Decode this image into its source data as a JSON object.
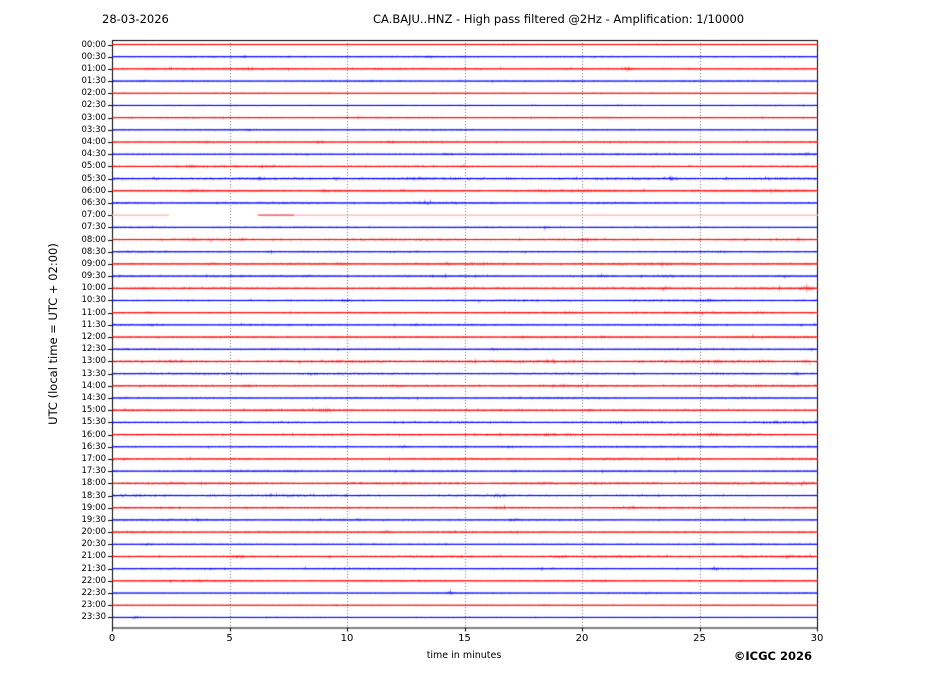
{
  "header": {
    "date": "28-03-2026",
    "title": "CA.BAJU..HNZ - High pass filtered @2Hz - Amplification: 1/10000"
  },
  "footer": {
    "credit": "©ICGC 2026"
  },
  "chart_data": {
    "type": "line",
    "subtype": "helicorder-dayplot",
    "title": "CA.BAJU..HNZ - High pass filtered @2Hz - Amplification: 1/10000",
    "date": "28-03-2026",
    "xlabel": "time in minutes",
    "ylabel": "UTC (local time = UTC + 02:00)",
    "xlim": [
      0,
      30
    ],
    "x_ticks": [
      0,
      5,
      10,
      15,
      20,
      25,
      30
    ],
    "x_gridlines": [
      5,
      10,
      15,
      20,
      25
    ],
    "grid": "vertical dotted gridlines at 5-minute intervals",
    "row_interval_minutes": 30,
    "n_rows": 48,
    "trace_colors": {
      "red": "#ff0000",
      "blue": "#0000ff",
      "pale": "#ffb3b3",
      "gap_segment": "#f26666"
    },
    "rows": [
      {
        "t": "00:00",
        "c": "red",
        "a": 0.7,
        "e": [
          [
            17,
            0.4,
            3
          ],
          [
            23,
            0.4,
            2
          ],
          [
            27,
            0.35,
            2.5
          ]
        ]
      },
      {
        "t": "00:30",
        "c": "blue",
        "a": 1.2,
        "e": [
          [
            5.6,
            0.7,
            0.3
          ],
          [
            13.5,
            0.9,
            0.4
          ]
        ]
      },
      {
        "t": "01:00",
        "c": "red",
        "a": 1.5,
        "e": [
          [
            1.5,
            0.6,
            0.5
          ],
          [
            22.0,
            1.6,
            0.35
          ],
          [
            24.6,
            0.8,
            0.3
          ],
          [
            28,
            0.6,
            0.4
          ]
        ]
      },
      {
        "t": "01:30",
        "c": "blue",
        "a": 1.1,
        "e": [
          [
            1.2,
            0.5,
            0.3
          ]
        ]
      },
      {
        "t": "02:00",
        "c": "red",
        "a": 0.95,
        "e": []
      },
      {
        "t": "02:30",
        "c": "blue",
        "a": 0.9,
        "e": []
      },
      {
        "t": "03:00",
        "c": "red",
        "a": 1.0,
        "e": [
          [
            21,
            0.3,
            0.5
          ]
        ]
      },
      {
        "t": "03:30",
        "c": "blue",
        "a": 1.0,
        "e": [
          [
            5.7,
            0.6,
            0.25
          ]
        ]
      },
      {
        "t": "04:00",
        "c": "red",
        "a": 1.35,
        "e": [
          [
            4.0,
            0.8,
            0.3
          ],
          [
            8.8,
            0.9,
            0.35
          ],
          [
            11.9,
            0.7,
            0.3
          ]
        ]
      },
      {
        "t": "04:30",
        "c": "blue",
        "a": 1.25,
        "e": [
          [
            14.3,
            0.6,
            0.3
          ],
          [
            29.5,
            1.1,
            0.3
          ]
        ]
      },
      {
        "t": "05:00",
        "c": "red",
        "a": 1.45,
        "e": [
          [
            3.3,
            0.8,
            0.3
          ],
          [
            6.7,
            0.6,
            0.3
          ],
          [
            15,
            0.5,
            0.4
          ]
        ]
      },
      {
        "t": "05:30",
        "c": "blue",
        "a": 1.8,
        "e": [
          [
            1.8,
            0.8,
            0.3
          ],
          [
            6.2,
            0.7,
            0.3
          ],
          [
            9.5,
            0.7,
            0.3
          ],
          [
            13,
            0.6,
            0.4
          ],
          [
            23.8,
            0.9,
            0.35
          ],
          [
            27.9,
            0.9,
            0.3
          ]
        ]
      },
      {
        "t": "06:00",
        "c": "red",
        "a": 1.75,
        "e": [
          [
            3.5,
            0.7,
            0.4
          ],
          [
            9.0,
            0.8,
            0.35
          ],
          [
            20,
            0.5,
            0.5
          ]
        ]
      },
      {
        "t": "06:30",
        "c": "blue",
        "a": 1.4,
        "e": [
          [
            13.2,
            1.3,
            0.4
          ],
          [
            16.2,
            0.6,
            0.3
          ]
        ]
      },
      {
        "t": "07:00",
        "c": "pale",
        "a": 0.35,
        "e": [],
        "gap": [
          2.4,
          6.2
        ],
        "segments": [
          {
            "from": 6.2,
            "to": 7.7,
            "amp": 0.9,
            "color": "gap_segment"
          }
        ],
        "note": "data gap, faint trace"
      },
      {
        "t": "07:30",
        "c": "blue",
        "a": 1.15,
        "e": [
          [
            18.4,
            0.8,
            0.3
          ]
        ]
      },
      {
        "t": "08:00",
        "c": "red",
        "a": 1.55,
        "e": [
          [
            3.3,
            0.7,
            0.3
          ],
          [
            5.5,
            0.7,
            0.3
          ],
          [
            20.1,
            1.0,
            0.35
          ]
        ]
      },
      {
        "t": "08:30",
        "c": "blue",
        "a": 1.35,
        "e": [
          [
            6.7,
            0.7,
            0.3
          ],
          [
            26,
            0.4,
            0.5
          ]
        ]
      },
      {
        "t": "09:00",
        "c": "red",
        "a": 1.6,
        "e": [
          [
            0.9,
            0.7,
            0.3
          ],
          [
            4.2,
            0.7,
            0.3
          ],
          [
            9.7,
            1.0,
            0.3
          ],
          [
            14.3,
            0.6,
            0.4
          ],
          [
            23.5,
            0.6,
            0.4
          ]
        ]
      },
      {
        "t": "09:30",
        "c": "blue",
        "a": 1.35,
        "e": [
          [
            8.3,
            0.6,
            0.3
          ],
          [
            20.8,
            0.9,
            0.3
          ],
          [
            23.6,
            0.8,
            0.3
          ],
          [
            28.5,
            0.6,
            0.3
          ]
        ]
      },
      {
        "t": "10:00",
        "c": "red",
        "a": 1.7,
        "e": [
          [
            1.4,
            1.2,
            0.35
          ],
          [
            17.9,
            0.8,
            0.3
          ],
          [
            23.5,
            0.6,
            0.4
          ],
          [
            29.7,
            0.8,
            0.25
          ]
        ]
      },
      {
        "t": "10:30",
        "c": "blue",
        "a": 1.35,
        "e": [
          [
            9.9,
            0.7,
            0.3
          ],
          [
            25.3,
            1.2,
            0.3
          ]
        ]
      },
      {
        "t": "11:00",
        "c": "red",
        "a": 1.45,
        "e": [
          [
            1.5,
            0.6,
            0.3
          ],
          [
            19.5,
            0.5,
            0.4
          ],
          [
            27.5,
            0.5,
            0.4
          ]
        ]
      },
      {
        "t": "11:30",
        "c": "blue",
        "a": 1.35,
        "e": [
          [
            1.8,
            0.7,
            0.3
          ],
          [
            12.9,
            0.8,
            0.3
          ],
          [
            25,
            0.6,
            0.4
          ]
        ]
      },
      {
        "t": "12:00",
        "c": "red",
        "a": 1.55,
        "e": [
          [
            9.5,
            0.8,
            0.3
          ],
          [
            17.5,
            0.5,
            0.4
          ]
        ]
      },
      {
        "t": "12:30",
        "c": "blue",
        "a": 1.45,
        "e": [
          [
            6.9,
            0.6,
            0.3
          ],
          [
            16.2,
            0.7,
            0.3
          ],
          [
            29.7,
            0.9,
            0.25
          ]
        ]
      },
      {
        "t": "13:00",
        "c": "red",
        "a": 1.85,
        "e": [
          [
            2.5,
            0.6,
            0.4
          ],
          [
            13.5,
            0.6,
            0.4
          ],
          [
            18.7,
            1.1,
            0.35
          ],
          [
            27.5,
            0.6,
            0.4
          ],
          [
            29.5,
            0.8,
            0.3
          ]
        ]
      },
      {
        "t": "13:30",
        "c": "blue",
        "a": 1.45,
        "e": [
          [
            8.5,
            0.6,
            0.3
          ],
          [
            29.2,
            0.7,
            0.3
          ]
        ]
      },
      {
        "t": "14:00",
        "c": "red",
        "a": 1.7,
        "e": [
          [
            5.7,
            0.9,
            0.3
          ],
          [
            12.1,
            0.6,
            0.4
          ],
          [
            19.3,
            1.1,
            0.35
          ]
        ]
      },
      {
        "t": "14:30",
        "c": "blue",
        "a": 1.25,
        "e": [
          [
            0.5,
            1.0,
            0.3
          ]
        ]
      },
      {
        "t": "15:00",
        "c": "red",
        "a": 1.5,
        "e": [
          [
            9.1,
            1.1,
            0.3
          ],
          [
            20.3,
            0.8,
            0.3
          ]
        ]
      },
      {
        "t": "15:30",
        "c": "blue",
        "a": 1.5,
        "e": [
          [
            5.3,
            1.0,
            0.3
          ],
          [
            28.3,
            0.9,
            0.3
          ]
        ]
      },
      {
        "t": "16:00",
        "c": "red",
        "a": 1.6,
        "e": [
          [
            18.5,
            0.6,
            0.4
          ],
          [
            25.5,
            0.5,
            0.5
          ]
        ]
      },
      {
        "t": "16:30",
        "c": "blue",
        "a": 1.35,
        "e": [
          [
            12.4,
            0.9,
            0.3
          ],
          [
            16.9,
            0.6,
            0.3
          ]
        ]
      },
      {
        "t": "17:00",
        "c": "red",
        "a": 1.6,
        "e": [
          [
            0.5,
            0.6,
            0.3
          ]
        ]
      },
      {
        "t": "17:30",
        "c": "blue",
        "a": 1.35,
        "e": [
          [
            7.8,
            1.0,
            0.3
          ],
          [
            17.1,
            0.7,
            0.3
          ]
        ]
      },
      {
        "t": "18:00",
        "c": "red",
        "a": 1.8,
        "e": [
          [
            2.5,
            0.6,
            0.4
          ],
          [
            23,
            0.6,
            0.4
          ],
          [
            29.4,
            1.0,
            0.3
          ]
        ]
      },
      {
        "t": "18:30",
        "c": "blue",
        "a": 1.45,
        "e": [
          [
            4.3,
            0.9,
            0.3
          ],
          [
            16.5,
            0.9,
            0.35
          ]
        ]
      },
      {
        "t": "19:00",
        "c": "red",
        "a": 1.6,
        "e": [
          [
            16.5,
            0.6,
            0.4
          ],
          [
            22.1,
            1.4,
            0.3
          ]
        ]
      },
      {
        "t": "19:30",
        "c": "blue",
        "a": 1.35,
        "e": [
          [
            3.7,
            0.9,
            0.3
          ],
          [
            17.0,
            0.9,
            0.3
          ]
        ]
      },
      {
        "t": "20:00",
        "c": "red",
        "a": 1.45,
        "e": [
          [
            11.7,
            1.0,
            0.3
          ],
          [
            14.5,
            0.6,
            0.3
          ]
        ]
      },
      {
        "t": "20:30",
        "c": "blue",
        "a": 1.2,
        "e": [
          [
            1.5,
            0.5,
            0.3
          ],
          [
            25.5,
            0.4,
            0.4
          ]
        ]
      },
      {
        "t": "21:00",
        "c": "red",
        "a": 1.55,
        "e": [
          [
            5.3,
            1.1,
            0.5
          ],
          [
            9.2,
            0.6,
            0.3
          ],
          [
            14.8,
            0.6,
            0.3
          ],
          [
            19,
            0.6,
            0.4
          ],
          [
            26.8,
            0.6,
            0.3
          ]
        ]
      },
      {
        "t": "21:30",
        "c": "blue",
        "a": 1.25,
        "e": [
          [
            25.6,
            1.4,
            0.35
          ]
        ]
      },
      {
        "t": "22:00",
        "c": "red",
        "a": 1.45,
        "e": [
          [
            3.5,
            0.5,
            0.4
          ],
          [
            21,
            0.4,
            0.5
          ]
        ]
      },
      {
        "t": "22:30",
        "c": "blue",
        "a": 1.05,
        "e": [
          [
            14.4,
            1.1,
            0.3
          ]
        ]
      },
      {
        "t": "23:00",
        "c": "red",
        "a": 0.95,
        "e": [
          [
            18.5,
            0.4,
            0.4
          ]
        ]
      },
      {
        "t": "23:30",
        "c": "blue",
        "a": 0.8,
        "e": [
          [
            1.0,
            0.9,
            0.3
          ]
        ]
      }
    ]
  }
}
